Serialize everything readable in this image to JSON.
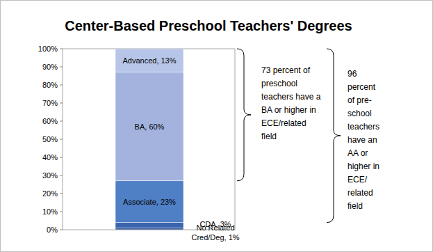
{
  "chart_data": {
    "type": "bar",
    "title": "Center-Based Preschool Teachers' Degrees",
    "categories": [
      null
    ],
    "stacked": true,
    "data_labels": true,
    "grid": false,
    "ylim": [
      0,
      100
    ],
    "yticks": [
      {
        "value": 0,
        "label": "0%"
      },
      {
        "value": 10,
        "label": "10%"
      },
      {
        "value": 20,
        "label": "20%"
      },
      {
        "value": 30,
        "label": "30%"
      },
      {
        "value": 40,
        "label": "40%"
      },
      {
        "value": 50,
        "label": "50%"
      },
      {
        "value": 60,
        "label": "60%"
      },
      {
        "value": 70,
        "label": "70%"
      },
      {
        "value": 80,
        "label": "80%"
      },
      {
        "value": 90,
        "label": "90%"
      },
      {
        "value": 100,
        "label": "100%"
      }
    ],
    "series": [
      {
        "values": [
          1
        ],
        "value_labels": [
          "No Related Cred/Deg, 1%"
        ],
        "color": "#2e4f8f"
      },
      {
        "values": [
          3
        ],
        "value_labels": [
          "CDA, 3%"
        ],
        "color": "#3a64ad"
      },
      {
        "values": [
          23
        ],
        "value_labels": [
          "Associate, 23%"
        ],
        "color": "#4f7fc4"
      },
      {
        "values": [
          60
        ],
        "value_labels": [
          "BA, 60%"
        ],
        "color": "#a3b3de"
      },
      {
        "values": [
          13
        ],
        "value_labels": [
          "Advanced, 13%"
        ],
        "color": "#b7c5e8"
      }
    ],
    "annotations": [
      {
        "lines": [
          "73 percent of",
          "preschool",
          "teachers have a",
          "BA or higher  in",
          "ECE/related",
          "field"
        ],
        "from": 27,
        "to": 100
      },
      {
        "lines": [
          "96",
          "percent",
          "of pre-",
          "school",
          "teachers",
          "have an",
          "AA or",
          "higher in",
          "ECE/",
          "related",
          "field"
        ],
        "from": 4,
        "to": 100
      }
    ]
  }
}
